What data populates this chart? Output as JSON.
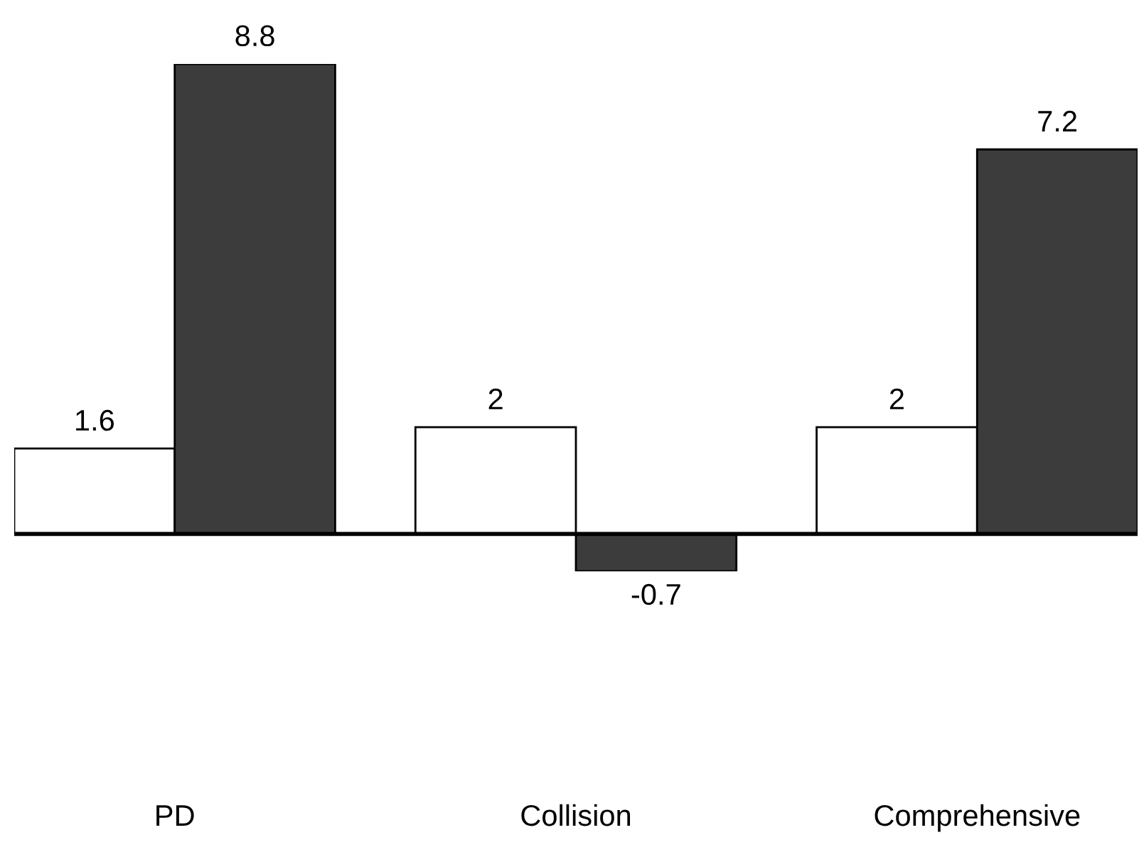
{
  "chart_data": {
    "type": "bar",
    "categories": [
      "PD",
      "Collision",
      "Comprehensive"
    ],
    "series": [
      {
        "color": "#ffffff",
        "values": [
          1.6,
          2,
          2
        ]
      },
      {
        "color": "#3c3c3c",
        "values": [
          8.8,
          -0.7,
          7.2
        ]
      }
    ],
    "tick_labels": "x",
    "data_labels": true,
    "ref_lines": [
      {
        "axis": "y",
        "value": 0,
        "color": "#000000"
      }
    ],
    "grid": false,
    "legend": false
  }
}
